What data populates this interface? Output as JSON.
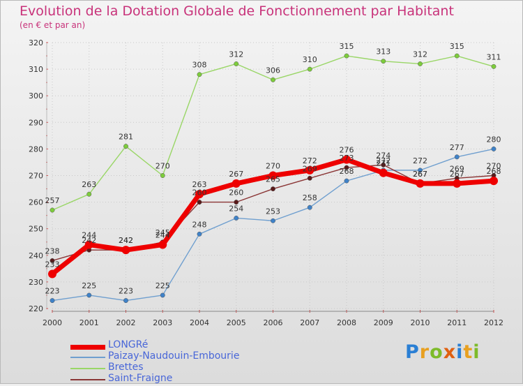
{
  "chart_data": {
    "type": "line",
    "title": "Evolution de la Dotation Globale de Fonctionnement par Habitant",
    "subtitle": "(en € et par an)",
    "xlabel": "",
    "ylabel": "",
    "x": [
      "2000",
      "2001",
      "2002",
      "2003",
      "2004",
      "2005",
      "2006",
      "2007",
      "2008",
      "2009",
      "2010",
      "2011",
      "2012"
    ],
    "ylim": [
      220,
      320
    ],
    "yticks": [
      220,
      230,
      240,
      250,
      260,
      270,
      280,
      290,
      300,
      310,
      320
    ],
    "grid": true,
    "series": [
      {
        "name": "Paizay-Naudouin-Embourie",
        "color": "#6f9fcf",
        "marker": "#3f82c8",
        "values": [
          223,
          225,
          223,
          225,
          248,
          254,
          253,
          258,
          268,
          272,
          272,
          277,
          280
        ]
      },
      {
        "name": "Brettes",
        "color": "#99d666",
        "marker": "#7dcc3c",
        "values": [
          257,
          263,
          281,
          270,
          308,
          312,
          306,
          310,
          315,
          313,
          312,
          315,
          311
        ]
      },
      {
        "name": "Saint-Fraigne",
        "color": "#8a3535",
        "marker": "#5a1a1a",
        "values": [
          238,
          242,
          242,
          245,
          260,
          260,
          265,
          269,
          273,
          274,
          267,
          269,
          270
        ]
      },
      {
        "name": "LONGRé",
        "color": "#ee0000",
        "marker": "#ee0000",
        "values": [
          233,
          244,
          242,
          244,
          263,
          267,
          270,
          272,
          276,
          271,
          267,
          267,
          268
        ]
      }
    ]
  },
  "legend": [
    {
      "label": "LONGRé",
      "color": "#ee0000"
    },
    {
      "label": "Paizay-Naudouin-Embourie",
      "color": "#6f9fcf"
    },
    {
      "label": "Brettes",
      "color": "#99d666"
    },
    {
      "label": "Saint-Fraigne",
      "color": "#8a3535"
    }
  ],
  "logo": {
    "text": "Proxiti"
  }
}
